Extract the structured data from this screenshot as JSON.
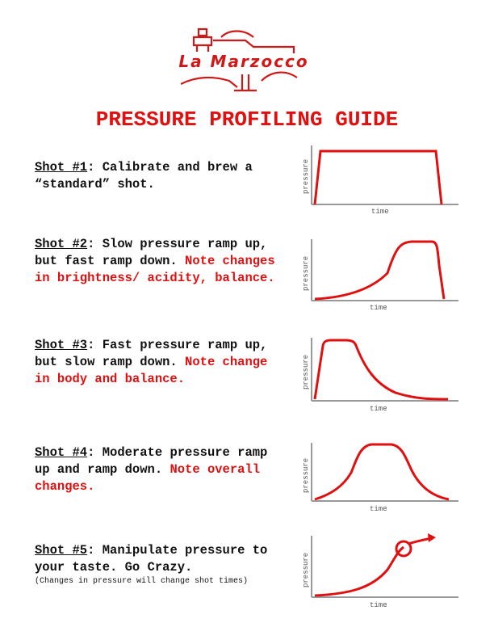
{
  "logo": {
    "brand_text": "La Marzocco",
    "color": "#d01818"
  },
  "title": "PRESSURE PROFILING GUIDE",
  "accent_color": "#e01010",
  "axis_labels": {
    "y": "pressure",
    "x": "time"
  },
  "shots": [
    {
      "head": "Shot #1",
      "text": ": Calibrate and brew a “standard” shot.",
      "red": "",
      "note": ""
    },
    {
      "head": "Shot #2",
      "text": ": Slow pressure ramp up, but fast ramp down.",
      "red": "Note changes in brightness/ acidity, balance.",
      "note": ""
    },
    {
      "head": "Shot #3",
      "text": ": Fast pressure ramp up, but slow ramp down.",
      "red": "Note change in body and balance.",
      "note": ""
    },
    {
      "head": "Shot #4",
      "text": ": Moderate pressure ramp up and ramp down. ",
      "red": "Note overall changes.",
      "note": ""
    },
    {
      "head": "Shot #5",
      "text": ": Manipulate pressure to your taste. Go Crazy.",
      "red": "",
      "note": "(Changes in pressure will change shot times)"
    }
  ]
}
